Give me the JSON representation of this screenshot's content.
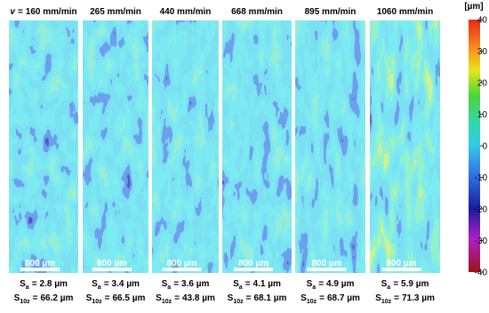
{
  "speed_symbol": "v",
  "equals": "=",
  "symbols": {
    "sa": "S",
    "sa_sub": "a",
    "s10z": "S",
    "s10z_sub": "10z"
  },
  "panels": [
    {
      "speed": "160 mm/min",
      "scale_bar": "800 µm",
      "sa": "2.8 µm",
      "s10z": "66.2 µm"
    },
    {
      "speed": "265 mm/min",
      "scale_bar": "800 µm",
      "sa": "3.4 µm",
      "s10z": "66.5 µm"
    },
    {
      "speed": "440 mm/min",
      "scale_bar": "800 µm",
      "sa": "3.6 µm",
      "s10z": "43.8 µm"
    },
    {
      "speed": "668 mm/min",
      "scale_bar": "800 µm",
      "sa": "4.1 µm",
      "s10z": "68.1 µm"
    },
    {
      "speed": "895 mm/min",
      "scale_bar": "800 µm",
      "sa": "4.9 µm",
      "s10z": "68.7 µm"
    },
    {
      "speed": "1060 mm/min",
      "scale_bar": "800 µm",
      "sa": "5.9 µm",
      "s10z": "71.3 µm"
    }
  ],
  "colorbar": {
    "unit": "[µm]",
    "ticks": [
      40,
      30,
      20,
      10,
      0,
      -10,
      -20,
      -30,
      -40
    ]
  }
}
